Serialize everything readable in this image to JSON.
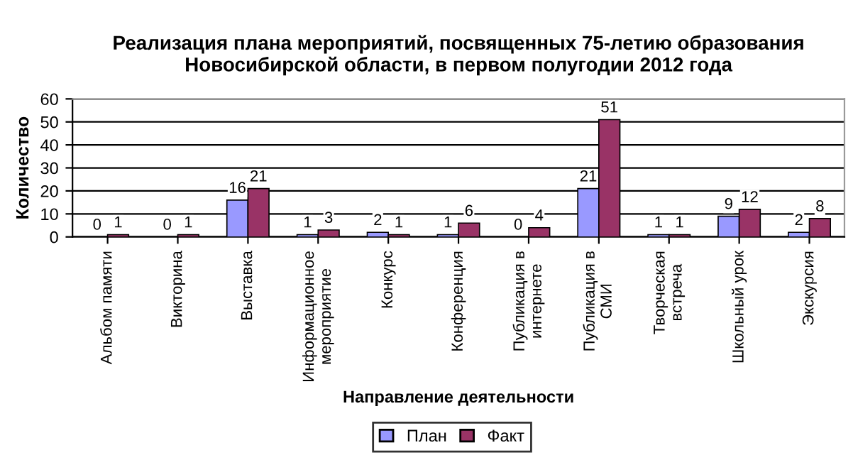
{
  "chart_data": {
    "type": "bar",
    "title": "Реализация плана мероприятий, посвященных 75-летию образования\nНовосибирской области, в первом полугодии 2012 года",
    "xlabel": "Направление деятельности",
    "ylabel": "Количество",
    "categories": [
      "Альбом памяти",
      "Викторина",
      "Выставка",
      "Информационное\nмероприятие",
      "Конкурс",
      "Конференция",
      "Публикация в\nинтернете",
      "Публикация в\nСМИ",
      "Творческая\nвстреча",
      "Школьный урок",
      "Экскурсия"
    ],
    "series": [
      {
        "name": "План",
        "color": "#9999ff",
        "values": [
          0,
          0,
          16,
          1,
          2,
          1,
          0,
          21,
          1,
          9,
          2
        ]
      },
      {
        "name": "Факт",
        "color": "#993366",
        "values": [
          1,
          1,
          21,
          3,
          1,
          6,
          4,
          51,
          1,
          12,
          8
        ]
      }
    ],
    "ylim": [
      0,
      60
    ],
    "yticks": [
      0,
      10,
      20,
      30,
      40,
      50,
      60
    ],
    "grid": "y",
    "legend": "bottom",
    "data_labels": true
  }
}
